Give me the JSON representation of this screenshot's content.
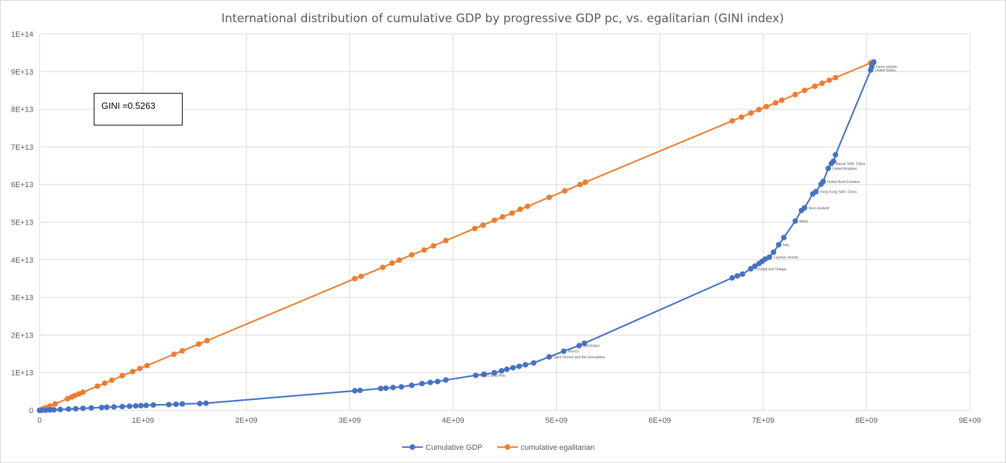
{
  "chart_data": {
    "type": "line",
    "title": "International distribution of cumulative GDP by progressive GDP pc, vs. egalitarian (GINI index)",
    "xlabel": "",
    "ylabel": "",
    "xlim": [
      0,
      9000000000
    ],
    "ylim": [
      0,
      100000000000000
    ],
    "x_ticks": [
      "0",
      "1E+09",
      "2E+09",
      "3E+09",
      "4E+09",
      "5E+09",
      "6E+09",
      "7E+09",
      "8E+09",
      "9E+09"
    ],
    "y_ticks": [
      "0",
      "1E+13",
      "2E+13",
      "3E+13",
      "4E+13",
      "5E+13",
      "6E+13",
      "7E+13",
      "8E+13",
      "9E+13",
      "1E+14"
    ],
    "grid": true,
    "legend_position": "bottom",
    "annotation": "GINI =0.5263",
    "series": [
      {
        "name": "Cumulative GDP",
        "color": "#4472c4",
        "points": [
          [
            0,
            0
          ],
          [
            20000000,
            10000000000
          ],
          [
            60000000,
            40000000000
          ],
          [
            100000000,
            90000000000
          ],
          [
            140000000,
            150000000000
          ],
          [
            200000000,
            230000000000
          ],
          [
            280000000,
            330000000000
          ],
          [
            350000000,
            430000000000
          ],
          [
            420000000,
            530000000000
          ],
          [
            500000000,
            620000000000
          ],
          [
            600000000,
            750000000000
          ],
          [
            650000000,
            820000000000
          ],
          [
            720000000,
            900000000000
          ],
          [
            800000000,
            1000000000000
          ],
          [
            870000000,
            1090000000000
          ],
          [
            930000000,
            1170000000000
          ],
          [
            980000000,
            1240000000000
          ],
          [
            1030000000,
            1310000000000
          ],
          [
            1100000000,
            1410000000000
          ],
          [
            1250000000,
            1530000000000
          ],
          [
            1320000000,
            1610000000000
          ],
          [
            1380000000,
            1700000000000
          ],
          [
            1550000000,
            1810000000000
          ],
          [
            1610000000,
            1900000000000
          ],
          [
            3050000000,
            5200000000000
          ],
          [
            3100000000,
            5300000000000
          ],
          [
            3300000000,
            5800000000000
          ],
          [
            3350000000,
            5900000000000
          ],
          [
            3420000000,
            6050000000000
          ],
          [
            3500000000,
            6250000000000
          ],
          [
            3600000000,
            6650000000000
          ],
          [
            3700000000,
            7100000000000
          ],
          [
            3780000000,
            7400000000000
          ],
          [
            3850000000,
            7650000000000
          ],
          [
            3930000000,
            8050000000000
          ],
          [
            4220000000,
            9300000000000
          ],
          [
            4300000000,
            9600000000000
          ],
          [
            4400000000,
            10000000000000
          ],
          [
            4470000000,
            10500000000000
          ],
          [
            4520000000,
            10900000000000
          ],
          [
            4580000000,
            11300000000000
          ],
          [
            4640000000,
            11700000000000
          ],
          [
            4700000000,
            12100000000000
          ],
          [
            4780000000,
            12600000000000
          ],
          [
            4930000000,
            14200000000000
          ],
          [
            5070000000,
            15700000000000
          ],
          [
            5220000000,
            17200000000000
          ],
          [
            5270000000,
            17800000000000
          ],
          [
            6700000000,
            35200000000000
          ],
          [
            6750000000,
            35700000000000
          ],
          [
            6800000000,
            36200000000000
          ],
          [
            6880000000,
            37600000000000
          ],
          [
            6920000000,
            38300000000000
          ],
          [
            6960000000,
            39000000000000
          ],
          [
            6990000000,
            39600000000000
          ],
          [
            7020000000,
            40200000000000
          ],
          [
            7060000000,
            40700000000000
          ],
          [
            7100000000,
            42000000000000
          ],
          [
            7150000000,
            44000000000000
          ],
          [
            7200000000,
            45900000000000
          ],
          [
            7310000000,
            50300000000000
          ],
          [
            7370000000,
            53100000000000
          ],
          [
            7400000000,
            53800000000000
          ],
          [
            7480000000,
            57500000000000
          ],
          [
            7510000000,
            58100000000000
          ],
          [
            7560000000,
            60100000000000
          ],
          [
            7580000000,
            60800000000000
          ],
          [
            7630000000,
            64300000000000
          ],
          [
            7660000000,
            65600000000000
          ],
          [
            7680000000,
            66200000000000
          ],
          [
            7700000000,
            67900000000000
          ],
          [
            8040000000,
            90400000000000
          ],
          [
            8050000000,
            91300000000000
          ],
          [
            8060000000,
            92200000000000
          ],
          [
            8070000000,
            92500000000000
          ]
        ]
      },
      {
        "name": "cumulative egalitarian",
        "color": "#ed7d31",
        "points": [
          [
            0,
            0
          ],
          [
            30000000,
            350000000000
          ],
          [
            60000000,
            700000000000
          ],
          [
            100000000,
            1150000000000
          ],
          [
            150000000,
            1700000000000
          ],
          [
            270000000,
            3100000000000
          ],
          [
            310000000,
            3560000000000
          ],
          [
            340000000,
            3900000000000
          ],
          [
            380000000,
            4350000000000
          ],
          [
            420000000,
            4800000000000
          ],
          [
            560000000,
            6400000000000
          ],
          [
            630000000,
            7200000000000
          ],
          [
            700000000,
            8000000000000
          ],
          [
            800000000,
            9200000000000
          ],
          [
            900000000,
            10300000000000
          ],
          [
            970000000,
            11100000000000
          ],
          [
            1040000000,
            11900000000000
          ],
          [
            1300000000,
            14900000000000
          ],
          [
            1380000000,
            15800000000000
          ],
          [
            1540000000,
            17600000000000
          ],
          [
            1620000000,
            18500000000000
          ],
          [
            3050000000,
            35000000000000
          ],
          [
            3110000000,
            35600000000000
          ],
          [
            3320000000,
            38000000000000
          ],
          [
            3410000000,
            39100000000000
          ],
          [
            3480000000,
            39900000000000
          ],
          [
            3600000000,
            41300000000000
          ],
          [
            3720000000,
            42600000000000
          ],
          [
            3810000000,
            43700000000000
          ],
          [
            3930000000,
            45100000000000
          ],
          [
            4210000000,
            48300000000000
          ],
          [
            4290000000,
            49200000000000
          ],
          [
            4400000000,
            50500000000000
          ],
          [
            4480000000,
            51400000000000
          ],
          [
            4570000000,
            52400000000000
          ],
          [
            4650000000,
            53400000000000
          ],
          [
            4720000000,
            54200000000000
          ],
          [
            4930000000,
            56600000000000
          ],
          [
            5080000000,
            58300000000000
          ],
          [
            5230000000,
            60000000000000
          ],
          [
            5280000000,
            60600000000000
          ],
          [
            6700000000,
            76900000000000
          ],
          [
            6790000000,
            77900000000000
          ],
          [
            6880000000,
            79000000000000
          ],
          [
            6960000000,
            79900000000000
          ],
          [
            7030000000,
            80700000000000
          ],
          [
            7120000000,
            81700000000000
          ],
          [
            7180000000,
            82400000000000
          ],
          [
            7310000000,
            83900000000000
          ],
          [
            7400000000,
            85000000000000
          ],
          [
            7500000000,
            86100000000000
          ],
          [
            7570000000,
            86900000000000
          ],
          [
            7640000000,
            87700000000000
          ],
          [
            7700000000,
            88400000000000
          ],
          [
            8040000000,
            92300000000000
          ],
          [
            8070000000,
            92600000000000
          ]
        ]
      }
    ],
    "point_labels": [
      {
        "x": 4220000000,
        "y": 9300000000000,
        "text": "Egypt, Arab Rep."
      },
      {
        "x": 5220000000,
        "y": 17200000000000,
        "text": "Azerbaijan"
      },
      {
        "x": 5070000000,
        "y": 15700000000000,
        "text": "Mexico"
      },
      {
        "x": 4930000000,
        "y": 14200000000000,
        "text": "Saint Vincent and the Grenadines"
      },
      {
        "x": 6880000000,
        "y": 37600000000000,
        "text": "Trinidad and Tobago"
      },
      {
        "x": 7060000000,
        "y": 40700000000000,
        "text": "Cayman Islands"
      },
      {
        "x": 7150000000,
        "y": 44000000000000,
        "text": "Italy"
      },
      {
        "x": 7310000000,
        "y": 50300000000000,
        "text": "Malta"
      },
      {
        "x": 7400000000,
        "y": 53800000000000,
        "text": "New Zealand"
      },
      {
        "x": 7510000000,
        "y": 58100000000000,
        "text": "Hong Kong SAR, China"
      },
      {
        "x": 7580000000,
        "y": 60800000000000,
        "text": "United Arab Emirates"
      },
      {
        "x": 7630000000,
        "y": 64300000000000,
        "text": "United Kingdom"
      },
      {
        "x": 7660000000,
        "y": 65600000000000,
        "text": "Macao SAR, China"
      },
      {
        "x": 8040000000,
        "y": 90400000000000,
        "text": "United States"
      },
      {
        "x": 8050000000,
        "y": 91300000000000,
        "text": "Faroe Islands"
      }
    ]
  },
  "legend": {
    "gdp_label": "Cumulative GDP",
    "egal_label": "cumulative egalitarian"
  }
}
